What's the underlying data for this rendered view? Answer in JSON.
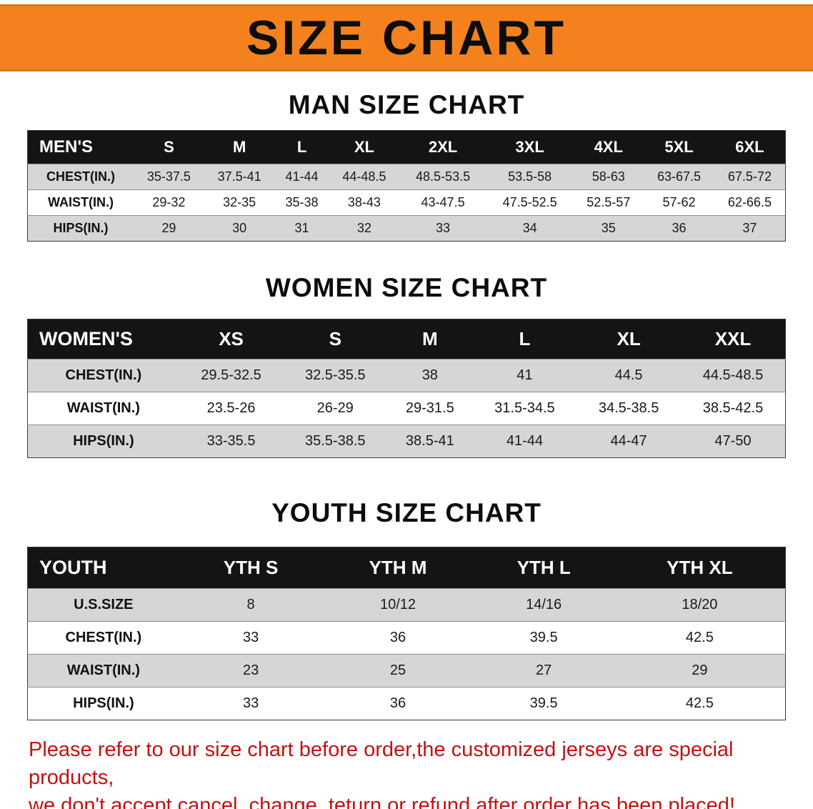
{
  "banner": {
    "title": "SIZE CHART",
    "background_color": "#f3821e",
    "text_color": "#0d0d0d"
  },
  "chart_data": [
    {
      "type": "table",
      "title": "MAN SIZE CHART",
      "header": [
        "MEN'S",
        "S",
        "M",
        "L",
        "XL",
        "2XL",
        "3XL",
        "4XL",
        "5XL",
        "6XL"
      ],
      "rows": [
        [
          "CHEST(IN.)",
          "35-37.5",
          "37.5-41",
          "41-44",
          "44-48.5",
          "48.5-53.5",
          "53.5-58",
          "58-63",
          "63-67.5",
          "67.5-72"
        ],
        [
          "WAIST(IN.)",
          "29-32",
          "32-35",
          "35-38",
          "38-43",
          "43-47.5",
          "47.5-52.5",
          "52.5-57",
          "57-62",
          "62-66.5"
        ],
        [
          "HIPS(IN.)",
          "29",
          "30",
          "31",
          "32",
          "33",
          "34",
          "35",
          "36",
          "37"
        ]
      ]
    },
    {
      "type": "table",
      "title": "WOMEN SIZE CHART",
      "header": [
        "WOMEN'S",
        "XS",
        "S",
        "M",
        "L",
        "XL",
        "XXL"
      ],
      "rows": [
        [
          "CHEST(IN.)",
          "29.5-32.5",
          "32.5-35.5",
          "38",
          "41",
          "44.5",
          "44.5-48.5"
        ],
        [
          "WAIST(IN.)",
          "23.5-26",
          "26-29",
          "29-31.5",
          "31.5-34.5",
          "34.5-38.5",
          "38.5-42.5"
        ],
        [
          "HIPS(IN.)",
          "33-35.5",
          "35.5-38.5",
          "38.5-41",
          "41-44",
          "44-47",
          "47-50"
        ]
      ]
    },
    {
      "type": "table",
      "title": "YOUTH SIZE CHART",
      "header": [
        "YOUTH",
        "YTH S",
        "YTH M",
        "YTH L",
        "YTH XL"
      ],
      "rows": [
        [
          "U.S.SIZE",
          "8",
          "10/12",
          "14/16",
          "18/20"
        ],
        [
          "CHEST(IN.)",
          "33",
          "36",
          "39.5",
          "42.5"
        ],
        [
          "WAIST(IN.)",
          "23",
          "25",
          "27",
          "29"
        ],
        [
          "HIPS(IN.)",
          "33",
          "36",
          "39.5",
          "42.5"
        ]
      ]
    }
  ],
  "disclaimer": {
    "line1": "Please refer to our size chart before order,the customized jerseys are special products,",
    "line2": "we don't accept cancel, change, teturn or refund after order has been placed!",
    "text_color": "#c41111"
  }
}
